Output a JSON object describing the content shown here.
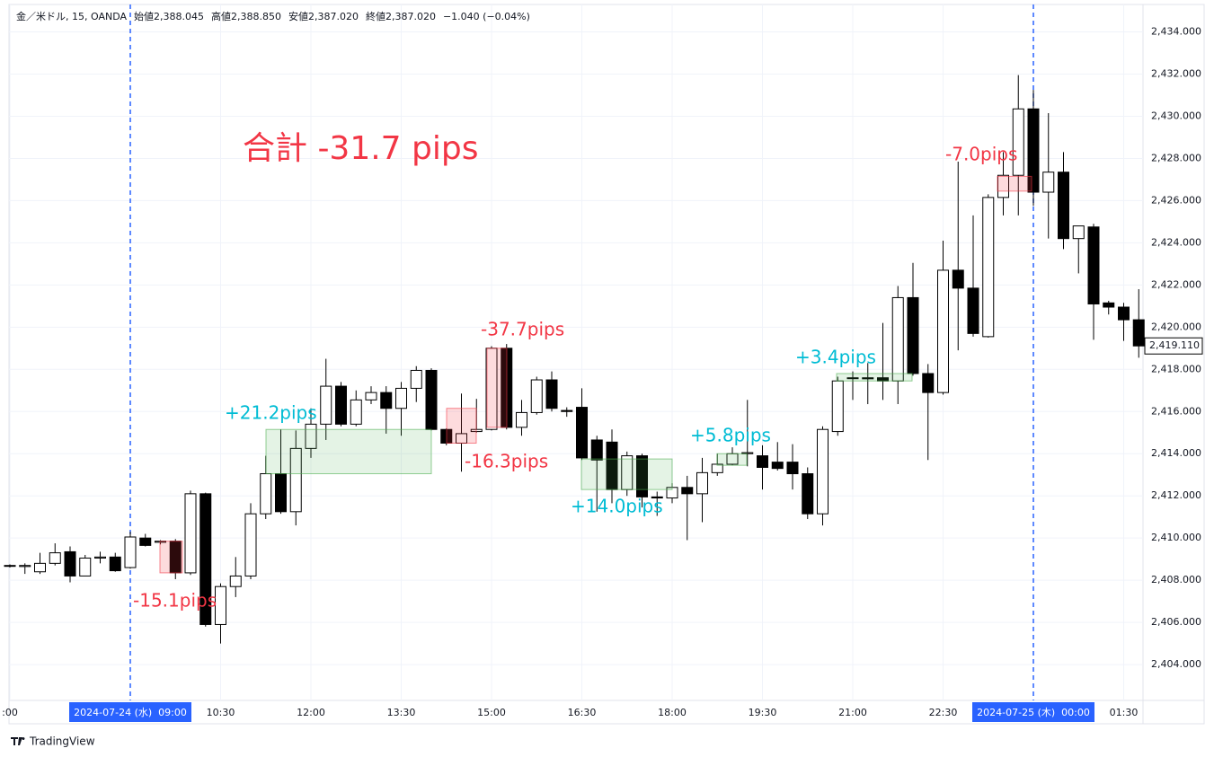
{
  "chart_data": {
    "type": "candlestick",
    "title": "金／米ドル, 15, OANDA",
    "ohlc_readout": [
      {
        "label": "始値",
        "value": "2,388.045"
      },
      {
        "label": "高値",
        "value": "2,388.850"
      },
      {
        "label": "安値",
        "value": "2,387.020"
      },
      {
        "label": "終値",
        "value": "2,387.020"
      }
    ],
    "change": "−1.040 (−0.04%)",
    "total_label": "合計 -31.7 pips",
    "branding": "TradingView",
    "x": [
      ":00",
      null,
      null,
      null,
      null,
      null,
      null,
      null,
      "2024-07-24 (水)  09:00",
      null,
      null,
      null,
      null,
      null,
      "10:30",
      null,
      null,
      null,
      null,
      null,
      "12:00",
      null,
      null,
      null,
      null,
      null,
      "13:30",
      null,
      null,
      null,
      null,
      null,
      "15:00",
      null,
      null,
      null,
      null,
      null,
      "16:30",
      null,
      null,
      null,
      null,
      null,
      "18:00",
      null,
      null,
      null,
      null,
      null,
      "19:30",
      null,
      null,
      null,
      null,
      null,
      "21:00",
      null,
      null,
      null,
      null,
      null,
      "22:30",
      null,
      null,
      null,
      null,
      null,
      "2024-07-25 (木)  00:00",
      null,
      null,
      null,
      null,
      null,
      "01:30",
      null
    ],
    "open": [
      2408.7,
      2408.65,
      2408.4,
      2408.8,
      2409.35,
      2408.2,
      2409.05,
      2409.1,
      2408.6,
      2410.0,
      2409.8,
      2409.85,
      2408.35,
      2412.1,
      2405.9,
      2407.7,
      2408.2,
      2411.15,
      2413.05,
      2411.25,
      2414.25,
      2415.4,
      2417.2,
      2415.4,
      2416.55,
      2416.9,
      2416.15,
      2417.1,
      2417.95,
      2415.15,
      2414.5,
      2415.05,
      2415.15,
      2419.0,
      2415.25,
      2415.95,
      2417.5,
      2416.05,
      2416.2,
      2414.65,
      2414.55,
      2412.3,
      2413.9,
      2411.95,
      2411.9,
      2412.4,
      2412.1,
      2413.1,
      2413.5,
      2414.0,
      2413.9,
      2413.6,
      2413.6,
      2413.05,
      2411.15,
      2415.05,
      2417.6,
      2417.6,
      2417.6,
      2417.45,
      2421.4,
      2417.8,
      2416.9,
      2422.7,
      2421.85,
      2419.55,
      2426.15,
      2427.2,
      2430.35,
      2426.4,
      2427.35,
      2424.2,
      2424.75,
      2421.15,
      2420.95,
      2420.35
    ],
    "high": [
      2408.75,
      2408.8,
      2409.3,
      2409.75,
      2409.6,
      2409.2,
      2409.35,
      2409.3,
      2410.3,
      2410.2,
      2409.9,
      2409.95,
      2412.25,
      2412.15,
      2407.85,
      2409.1,
      2411.65,
      2413.9,
      2415.15,
      2415.1,
      2416.15,
      2418.5,
      2417.4,
      2417.0,
      2417.2,
      2417.2,
      2417.4,
      2418.15,
      2418.05,
      2415.2,
      2416.85,
      2416.6,
      2419.1,
      2419.2,
      2416.55,
      2417.65,
      2417.9,
      2416.2,
      2417.1,
      2414.85,
      2415.15,
      2414.1,
      2414.0,
      2412.2,
      2412.6,
      2412.95,
      2413.8,
      2414.0,
      2414.3,
      2416.55,
      2414.4,
      2414.55,
      2414.45,
      2413.35,
      2415.3,
      2417.65,
      2417.9,
      2418.3,
      2420.2,
      2421.95,
      2423.05,
      2418.25,
      2424.1,
      2427.85,
      2425.3,
      2426.3,
      2428.3,
      2431.95,
      2431.25,
      2430.15,
      2428.3,
      2424.8,
      2424.9,
      2421.25,
      2421.15,
      2421.8
    ],
    "low": [
      2408.6,
      2408.3,
      2408.3,
      2408.7,
      2407.9,
      2408.2,
      2408.8,
      2408.4,
      2408.55,
      2409.6,
      2409.7,
      2408.05,
      2408.25,
      2405.8,
      2405.0,
      2407.2,
      2408.05,
      2410.9,
      2411.15,
      2410.6,
      2413.8,
      2414.65,
      2415.3,
      2415.3,
      2416.35,
      2414.95,
      2414.85,
      2416.45,
      2415.1,
      2414.4,
      2413.15,
      2415.0,
      2415.1,
      2415.15,
      2414.85,
      2415.85,
      2416.0,
      2415.75,
      2413.7,
      2411.25,
      2411.65,
      2412.0,
      2411.45,
      2411.05,
      2411.65,
      2409.9,
      2410.75,
      2412.95,
      2413.45,
      2413.4,
      2412.3,
      2413.2,
      2412.3,
      2410.9,
      2410.6,
      2414.85,
      2416.55,
      2416.35,
      2416.55,
      2416.35,
      2417.7,
      2413.7,
      2416.8,
      2418.9,
      2419.55,
      2419.5,
      2425.3,
      2425.3,
      2425.75,
      2424.2,
      2423.7,
      2422.55,
      2419.4,
      2420.6,
      2419.35,
      2418.55
    ],
    "close": [
      2408.7,
      2408.7,
      2408.8,
      2409.3,
      2408.2,
      2409.05,
      2409.1,
      2408.45,
      2410.05,
      2409.65,
      2409.85,
      2408.35,
      2412.1,
      2405.9,
      2407.7,
      2408.2,
      2411.15,
      2413.05,
      2411.25,
      2414.25,
      2415.4,
      2417.2,
      2415.4,
      2416.55,
      2416.9,
      2416.15,
      2417.1,
      2417.95,
      2415.15,
      2414.5,
      2414.95,
      2415.15,
      2419.0,
      2415.25,
      2415.95,
      2417.5,
      2416.15,
      2416.0,
      2413.8,
      2413.7,
      2412.3,
      2413.9,
      2411.95,
      2411.9,
      2412.4,
      2412.1,
      2413.1,
      2413.5,
      2414.0,
      2414.05,
      2413.35,
      2413.3,
      2413.05,
      2411.15,
      2415.15,
      2417.45,
      2417.6,
      2417.55,
      2417.45,
      2421.4,
      2417.8,
      2416.9,
      2422.7,
      2421.85,
      2419.7,
      2426.15,
      2427.2,
      2430.35,
      2426.4,
      2427.35,
      2424.2,
      2424.8,
      2421.1,
      2420.95,
      2420.35,
      2419.11
    ],
    "up_color": "#ffffff",
    "down_color": "#000000",
    "date_marker_color": "#2962ff",
    "last_price": {
      "value": 2419.11,
      "label": "2,419.110"
    },
    "trades": [
      {
        "label": "-15.1pips",
        "top": 2409.85,
        "bottom": 2408.35,
        "color": "#f23645"
      },
      {
        "label": "+21.2pips",
        "top": 2415.15,
        "bottom": 2413.05,
        "color": "#00bcd4"
      },
      {
        "label": "-16.3pips",
        "top": 2416.15,
        "bottom": 2414.5,
        "color": "#f23645"
      },
      {
        "label": "-37.7pips",
        "top": 2419.0,
        "bottom": 2415.25,
        "color": "#f23645"
      },
      {
        "label": "+14.0pips",
        "top": 2413.75,
        "bottom": 2412.3,
        "color": "#00bcd4"
      },
      {
        "label": "+5.8pips",
        "top": 2414.0,
        "bottom": 2413.45,
        "color": "#00bcd4"
      },
      {
        "label": "+3.4pips",
        "top": 2417.8,
        "bottom": 2417.45,
        "color": "#00bcd4"
      },
      {
        "label": "-7.0pips",
        "top": 2427.15,
        "bottom": 2426.45,
        "color": "#f23645"
      }
    ],
    "ylim": [
      2402.3,
      2435.3
    ],
    "yticks": [
      {
        "value": 2404,
        "label": "2,404.000"
      },
      {
        "value": 2406,
        "label": "2,406.000"
      },
      {
        "value": 2408,
        "label": "2,408.000"
      },
      {
        "value": 2410,
        "label": "2,410.000"
      },
      {
        "value": 2412,
        "label": "2,412.000"
      },
      {
        "value": 2414,
        "label": "2,414.000"
      },
      {
        "value": 2416,
        "label": "2,416.000"
      },
      {
        "value": 2418,
        "label": "2,418.000"
      },
      {
        "value": 2420,
        "label": "2,420.000"
      },
      {
        "value": 2422,
        "label": "2,422.000"
      },
      {
        "value": 2424,
        "label": "2,424.000"
      },
      {
        "value": 2426,
        "label": "2,426.000"
      },
      {
        "value": 2428,
        "label": "2,428.000"
      },
      {
        "value": 2430,
        "label": "2,430.000"
      },
      {
        "value": 2432,
        "label": "2,432.000"
      },
      {
        "value": 2434,
        "label": "2,434.000"
      }
    ],
    "grid": true
  }
}
